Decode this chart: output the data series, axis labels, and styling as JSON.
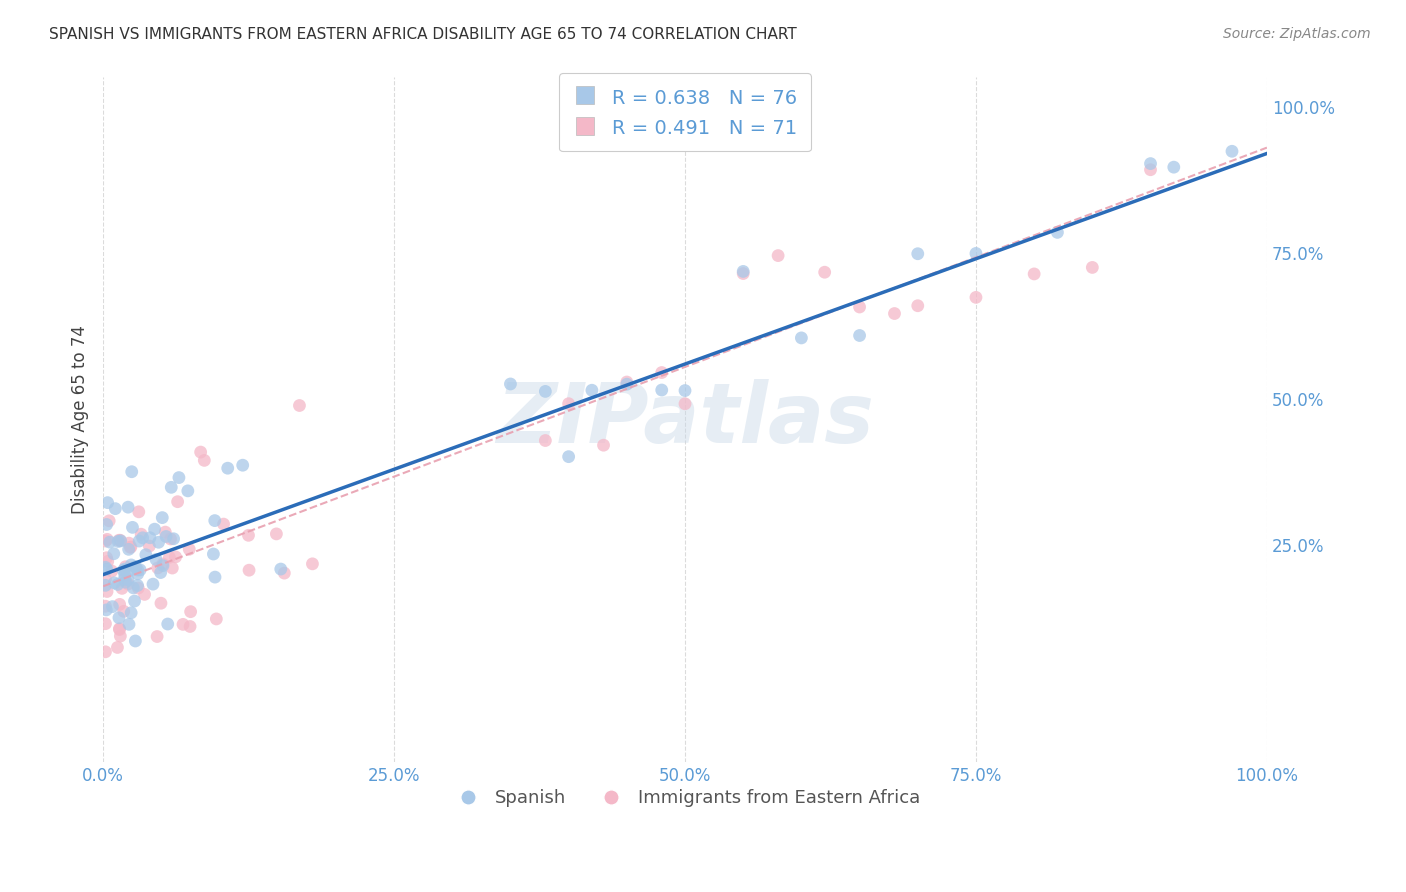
{
  "title": "SPANISH VS IMMIGRANTS FROM EASTERN AFRICA DISABILITY AGE 65 TO 74 CORRELATION CHART",
  "source": "Source: ZipAtlas.com",
  "ylabel": "Disability Age 65 to 74",
  "xlim": [
    0.0,
    1.0
  ],
  "ylim": [
    -0.12,
    1.05
  ],
  "xticks": [
    0.0,
    0.25,
    0.5,
    0.75,
    1.0
  ],
  "yticks": [
    0.25,
    0.5,
    0.75,
    1.0
  ],
  "xticklabels": [
    "0.0%",
    "25.0%",
    "50.0%",
    "75.0%",
    "100.0%"
  ],
  "yticklabels": [
    "25.0%",
    "50.0%",
    "75.0%",
    "100.0%"
  ],
  "blue_color": "#a8c8e8",
  "pink_color": "#f4b8c8",
  "line_blue": "#2b6cb8",
  "line_pink": "#e8a0b0",
  "legend_r1": "R = 0.638",
  "legend_n1": "N = 76",
  "legend_r2": "R = 0.491",
  "legend_n2": "N = 71",
  "series1_label": "Spanish",
  "series2_label": "Immigrants from Eastern Africa",
  "watermark": "ZIPatlas",
  "background_color": "#ffffff",
  "grid_color": "#cccccc",
  "title_color": "#333333",
  "tick_color": "#5b9bd5",
  "blue_line_intercept": 0.2,
  "blue_line_slope": 0.72,
  "pink_line_intercept": 0.18,
  "pink_line_slope": 0.75
}
